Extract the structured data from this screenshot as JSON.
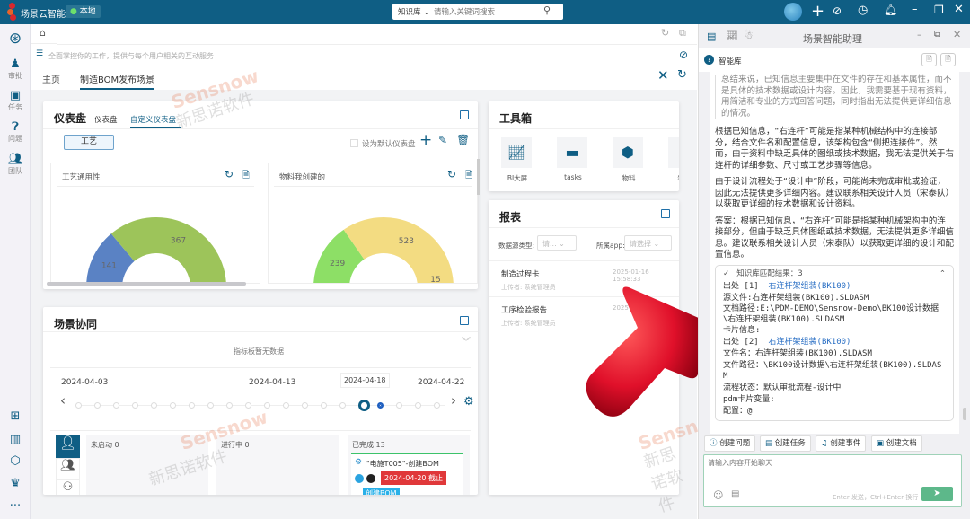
{
  "app": {
    "title": "场景云智能",
    "location": "本地",
    "search_scope": "知识库",
    "search_placeholder": "请输入关键词搜索"
  },
  "sidebar": {
    "items": [
      {
        "label": "审批",
        "icon": "stamp-icon"
      },
      {
        "label": "任务",
        "icon": "clipboard-icon"
      },
      {
        "label": "问题",
        "icon": "question-icon"
      },
      {
        "label": "团队",
        "icon": "team-icon"
      }
    ]
  },
  "main": {
    "notice": "全面掌控你的工作，提供与每个用户相关的互动服务",
    "tabs": [
      {
        "label": "主页",
        "active": false
      },
      {
        "label": "制造BOM发布场景",
        "active": true
      }
    ],
    "dashboard": {
      "title": "仪表盘",
      "tabs": [
        "仪表盘",
        "自定义仪表盘"
      ],
      "active_tab": 1,
      "filter": "工艺",
      "default_label": "设为默认仪表盘",
      "charts": [
        {
          "title": "工艺通用性",
          "slices": [
            {
              "value": 141,
              "color": "#5a82c4"
            },
            {
              "value": 367,
              "color": "#9dc45a"
            }
          ]
        },
        {
          "title": "物料我创建的",
          "slices": [
            {
              "value": 239,
              "color": "#8ddf66"
            },
            {
              "value": 523,
              "color": "#f3dc82"
            },
            {
              "value": 15,
              "color": "#ee6677"
            }
          ]
        }
      ]
    },
    "toolbox": {
      "title": "工具箱",
      "items": [
        {
          "label": "BI大屏",
          "icon": "bi-chart-icon"
        },
        {
          "label": "tasks",
          "icon": "calendar-icon"
        },
        {
          "label": "物料",
          "icon": "cubes-icon"
        },
        {
          "label": "物料",
          "icon": "document-icon"
        }
      ]
    },
    "report": {
      "title": "报表",
      "filter1_label": "数据源类型:",
      "filter1_value": "请...",
      "filter2_label": "所属app:",
      "filter2_value": "请选择",
      "items": [
        {
          "name": "制造过程卡",
          "time": "2025-01-16 15:58:33",
          "uploader": "上传者: 系统管理员"
        },
        {
          "name": "工序检验报告",
          "time": "2025",
          "uploader": "上传者: 系统管理员"
        }
      ]
    },
    "collab": {
      "title": "场景协同",
      "empty": "指标板暂无数据",
      "dates": [
        "2024-04-03",
        "2024-04-13",
        "2024-04-22"
      ],
      "tooltip_date": "2024-04-18",
      "columns": [
        {
          "label": "未启动 0"
        },
        {
          "label": "进行中 0"
        },
        {
          "label": "已完成 13"
        }
      ],
      "task": {
        "title": "\"电施T005\"-创建BOM",
        "deadline": "2024-04-20 截止",
        "tag": "创建BOM"
      }
    }
  },
  "assistant": {
    "title": "场景智能助理",
    "library": "智能库",
    "thinking": "总结来说，已知信息主要集中在文件的存在和基本属性，而不是具体的技术数据或设计内容。因此，我需要基于现有资料，用简洁和专业的方式回答问题，同时指出无法提供更详细信息的情况。",
    "paragraphs": [
      "根据已知信息，“右连杆”可能是指某种机械结构中的连接部分，结合文件名和配置信息，该架构包含“侧把连接件”。然而，由于资料中缺乏具体的图纸或技术数据，我无法提供关于右连杆的详细参数、尺寸或工艺步骤等信息。",
      "由于设计流程处于“设计中”阶段，可能尚未完成审批或验证，因此无法提供更多详细内容。建议联系相关设计人员（宋泰队）以获取更详细的技术数据和设计资料。",
      "答案：根据已知信息，“右连杆”可能是指某种机械架构中的连接部分，但由于缺乏具体图纸或技术数据，无法提供更多详细信息。建议联系相关设计人员（宋泰队）以获取更详细的设计和配置信息。"
    ],
    "kb_header": "知识库匹配结果：3",
    "src1_label": "出处 [1]",
    "src1_link": "右连杆架组装(BK100)",
    "src1_lines": [
      "源文件:右连杆架组装(BK100).SLDASM",
      "文档路径:E:\\PDM-DEMO\\Sensnow-Demo\\BK100设计数据\\右连杆架组装(BK100).SLDASM",
      "卡片信息:"
    ],
    "src2_label": "出处 [2]",
    "src2_link": "右连杆架组装(BK100)",
    "src2_lines": [
      "文件名：右连杆架组装(BK100).SLDASM",
      "文件路径：\\BK100设计数据\\右连杆架组装(BK100).SLDASM",
      "流程状态：默认审批流程-设计中",
      "pdm卡片变量:",
      "配置：@"
    ],
    "actions": [
      "创建问题",
      "创建任务",
      "创建事件",
      "创建文档"
    ],
    "input_placeholder": "请输入内容开始聊天",
    "hint": "Enter 发送，Ctrl+Enter 换行"
  },
  "watermark": {
    "brand": "Sensnow",
    "cn": "新思诺软件"
  },
  "colors": {
    "primary": "#0f5e84",
    "send": "#5db88a",
    "deadline": "#e0383a",
    "done_border": "#3cc36a"
  }
}
